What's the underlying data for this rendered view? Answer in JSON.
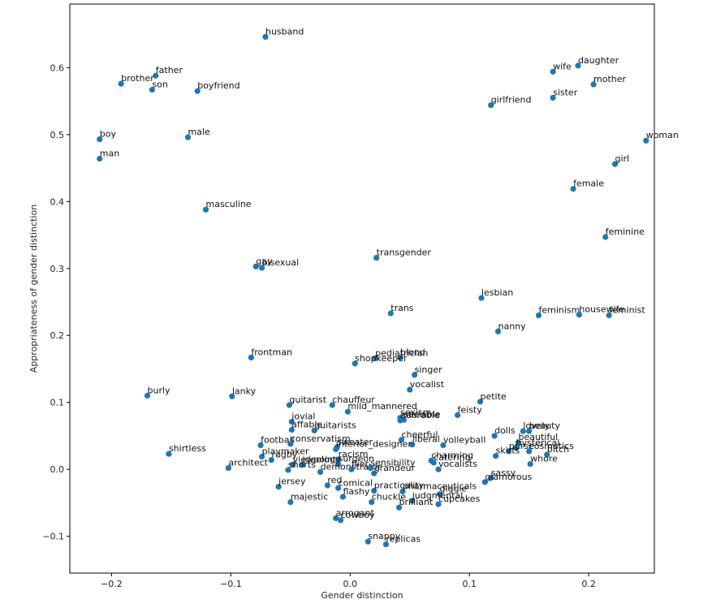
{
  "chart_data": {
    "type": "scatter",
    "title": "",
    "xlabel": "Gender distinction",
    "ylabel": "Appropriateness of gender distinction",
    "xlim": [
      -0.235,
      0.255
    ],
    "ylim": [
      -0.155,
      0.695
    ],
    "xticks": [
      -0.2,
      -0.1,
      0.0,
      0.1,
      0.2
    ],
    "xtick_labels": [
      "−0.2",
      "−0.1",
      "0.0",
      "0.1",
      "0.2"
    ],
    "yticks": [
      -0.1,
      0.0,
      0.1,
      0.2,
      0.3,
      0.4,
      0.5,
      0.6
    ],
    "ytick_labels": [
      "−0.1",
      "0.0",
      "0.1",
      "0.2",
      "0.3",
      "0.4",
      "0.5",
      "0.6"
    ],
    "grid": false,
    "marker_color": "#1f77b4",
    "points": [
      {
        "label": "husband",
        "x": -0.071,
        "y": 0.646
      },
      {
        "label": "father",
        "x": -0.163,
        "y": 0.588
      },
      {
        "label": "brother",
        "x": -0.192,
        "y": 0.576
      },
      {
        "label": "son",
        "x": -0.166,
        "y": 0.567
      },
      {
        "label": "boyfriend",
        "x": -0.128,
        "y": 0.565
      },
      {
        "label": "wife",
        "x": 0.17,
        "y": 0.594
      },
      {
        "label": "daughter",
        "x": 0.191,
        "y": 0.603
      },
      {
        "label": "mother",
        "x": 0.204,
        "y": 0.575
      },
      {
        "label": "sister",
        "x": 0.17,
        "y": 0.555
      },
      {
        "label": "girlfriend",
        "x": 0.118,
        "y": 0.544
      },
      {
        "label": "boy",
        "x": -0.21,
        "y": 0.493
      },
      {
        "label": "male",
        "x": -0.136,
        "y": 0.496
      },
      {
        "label": "man",
        "x": -0.21,
        "y": 0.464
      },
      {
        "label": "woman",
        "x": 0.248,
        "y": 0.491
      },
      {
        "label": "girl",
        "x": 0.222,
        "y": 0.456
      },
      {
        "label": "female",
        "x": 0.187,
        "y": 0.419
      },
      {
        "label": "masculine",
        "x": -0.121,
        "y": 0.388
      },
      {
        "label": "feminine",
        "x": 0.214,
        "y": 0.347
      },
      {
        "label": "gay",
        "x": -0.079,
        "y": 0.303
      },
      {
        "label": "bisexual",
        "x": -0.074,
        "y": 0.301
      },
      {
        "label": "transgender",
        "x": 0.022,
        "y": 0.316
      },
      {
        "label": "lesbian",
        "x": 0.11,
        "y": 0.256
      },
      {
        "label": "trans",
        "x": 0.034,
        "y": 0.233
      },
      {
        "label": "feminism",
        "x": 0.158,
        "y": 0.23
      },
      {
        "label": "housewife",
        "x": 0.192,
        "y": 0.231
      },
      {
        "label": "feminist",
        "x": 0.217,
        "y": 0.23
      },
      {
        "label": "nanny",
        "x": 0.124,
        "y": 0.206
      },
      {
        "label": "frontman",
        "x": -0.083,
        "y": 0.167
      },
      {
        "label": "pediatrician",
        "x": 0.021,
        "y": 0.166
      },
      {
        "label": "blond",
        "x": 0.042,
        "y": 0.167
      },
      {
        "label": "shopkeeper",
        "x": 0.004,
        "y": 0.158
      },
      {
        "label": "singer",
        "x": 0.054,
        "y": 0.141
      },
      {
        "label": "vocalist",
        "x": 0.05,
        "y": 0.119
      },
      {
        "label": "burly",
        "x": -0.17,
        "y": 0.11
      },
      {
        "label": "lanky",
        "x": -0.099,
        "y": 0.109
      },
      {
        "label": "petite",
        "x": 0.109,
        "y": 0.101
      },
      {
        "label": "guitarist",
        "x": -0.051,
        "y": 0.096
      },
      {
        "label": "chauffeur",
        "x": -0.015,
        "y": 0.096
      },
      {
        "label": "mild_mannered",
        "x": -0.002,
        "y": 0.086
      },
      {
        "label": "sexism",
        "x": 0.042,
        "y": 0.077
      },
      {
        "label": "feisty",
        "x": 0.09,
        "y": 0.081
      },
      {
        "label": "sociable",
        "x": 0.045,
        "y": 0.074
      },
      {
        "label": "adorable",
        "x": 0.042,
        "y": 0.073
      },
      {
        "label": "jovial",
        "x": -0.049,
        "y": 0.071
      },
      {
        "label": "affable",
        "x": -0.049,
        "y": 0.059
      },
      {
        "label": "guitarists",
        "x": -0.03,
        "y": 0.058
      },
      {
        "label": "dolls",
        "x": 0.121,
        "y": 0.05
      },
      {
        "label": "lovely",
        "x": 0.145,
        "y": 0.057
      },
      {
        "label": "beauty",
        "x": 0.15,
        "y": 0.057
      },
      {
        "label": "shirtless",
        "x": -0.152,
        "y": 0.023
      },
      {
        "label": "football",
        "x": -0.075,
        "y": 0.036
      },
      {
        "label": "conservatism",
        "x": -0.05,
        "y": 0.038
      },
      {
        "label": "cheerful",
        "x": 0.043,
        "y": 0.044
      },
      {
        "label": "liberal",
        "x": 0.052,
        "y": 0.037
      },
      {
        "label": "volleyball",
        "x": 0.078,
        "y": 0.036
      },
      {
        "label": "beautiful",
        "x": 0.141,
        "y": 0.04
      },
      {
        "label": "sweater",
        "x": -0.011,
        "y": 0.033
      },
      {
        "label": "interior_designer",
        "x": -0.012,
        "y": 0.03
      },
      {
        "label": "hysterical",
        "x": 0.139,
        "y": 0.032
      },
      {
        "label": "purse",
        "x": 0.133,
        "y": 0.027
      },
      {
        "label": "cosmetics",
        "x": 0.15,
        "y": 0.027
      },
      {
        "label": "bitch",
        "x": 0.165,
        "y": 0.022
      },
      {
        "label": "playmaker",
        "x": -0.074,
        "y": 0.019
      },
      {
        "label": "rugby",
        "x": -0.066,
        "y": 0.014
      },
      {
        "label": "skirts",
        "x": 0.122,
        "y": 0.02
      },
      {
        "label": "whore",
        "x": 0.151,
        "y": 0.008
      },
      {
        "label": "architect",
        "x": -0.102,
        "y": 0.002
      },
      {
        "label": "racism",
        "x": -0.01,
        "y": 0.015
      },
      {
        "label": "surgeon",
        "x": -0.01,
        "y": 0.008
      },
      {
        "label": "charming",
        "x": 0.068,
        "y": 0.013
      },
      {
        "label": "catering",
        "x": 0.07,
        "y": 0.01
      },
      {
        "label": "vocalists",
        "x": 0.074,
        "y": 0.0
      },
      {
        "label": "viewpoint",
        "x": -0.048,
        "y": 0.007
      },
      {
        "label": "ideology",
        "x": -0.04,
        "y": 0.007
      },
      {
        "label": "shorts",
        "x": -0.052,
        "y": -0.001
      },
      {
        "label": "demonstrator",
        "x": -0.025,
        "y": -0.004
      },
      {
        "label": "sensibility",
        "x": 0.017,
        "y": 0.002
      },
      {
        "label": "flier",
        "x": 0.001,
        "y": 0.0
      },
      {
        "label": "grandeur",
        "x": 0.02,
        "y": -0.006
      },
      {
        "label": "sassy",
        "x": 0.118,
        "y": -0.013
      },
      {
        "label": "glamorous",
        "x": 0.113,
        "y": -0.019
      },
      {
        "label": "jersey",
        "x": -0.06,
        "y": -0.026
      },
      {
        "label": "red",
        "x": -0.019,
        "y": -0.024
      },
      {
        "label": "comical",
        "x": -0.01,
        "y": -0.028
      },
      {
        "label": "practicality",
        "x": 0.02,
        "y": -0.032
      },
      {
        "label": "pharmaceuticals",
        "x": 0.044,
        "y": -0.033
      },
      {
        "label": "giggle",
        "x": 0.075,
        "y": -0.037
      },
      {
        "label": "majestic",
        "x": -0.05,
        "y": -0.049
      },
      {
        "label": "flashy",
        "x": -0.006,
        "y": -0.041
      },
      {
        "label": "chuckle",
        "x": 0.018,
        "y": -0.049
      },
      {
        "label": "judgmental",
        "x": 0.052,
        "y": -0.047
      },
      {
        "label": "cupcakes",
        "x": 0.074,
        "y": -0.052
      },
      {
        "label": "brilliant",
        "x": 0.041,
        "y": -0.057
      },
      {
        "label": "arrogant",
        "x": -0.012,
        "y": -0.073
      },
      {
        "label": "cowboy",
        "x": -0.008,
        "y": -0.076
      },
      {
        "label": "snappy",
        "x": 0.015,
        "y": -0.108
      },
      {
        "label": "replicas",
        "x": 0.03,
        "y": -0.112
      }
    ]
  }
}
